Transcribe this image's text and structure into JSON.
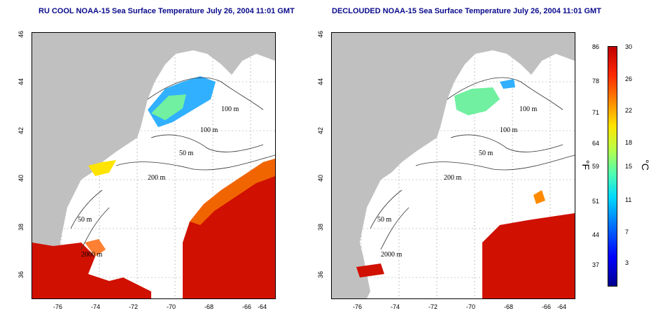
{
  "left_map": {
    "title": "RU COOL NOAA-15 Sea Surface Temperature July 26, 2004 11:01 GMT",
    "contour_labels": [
      "100 m",
      "100 m",
      "50 m",
      "200 m",
      "50 m",
      "2000 m"
    ]
  },
  "right_map": {
    "title": "DECLOUDED NOAA-15 Sea Surface Temperature July 26, 2004 11:01 GMT",
    "contour_labels": [
      "100 m",
      "100 m",
      "50 m",
      "200 m",
      "50 m",
      "2000 m"
    ]
  },
  "axes": {
    "x_ticks": [
      "-76",
      "-74",
      "-72",
      "-70",
      "-68",
      "-66",
      "-64"
    ],
    "y_ticks": [
      "46",
      "44",
      "42",
      "40",
      "38",
      "36"
    ]
  },
  "colorbar": {
    "fahrenheit_labels": [
      "86",
      "78",
      "71",
      "64",
      "59",
      "51",
      "44",
      "37"
    ],
    "celsius_labels": [
      "30",
      "26",
      "22",
      "18",
      "15",
      "11",
      "7",
      "3"
    ],
    "fahrenheit_unit": "°F",
    "celsius_unit": "°C",
    "colors": {
      "land": "#c0c0c0",
      "warm": "#d01000",
      "cool": "#30b0ff"
    }
  }
}
